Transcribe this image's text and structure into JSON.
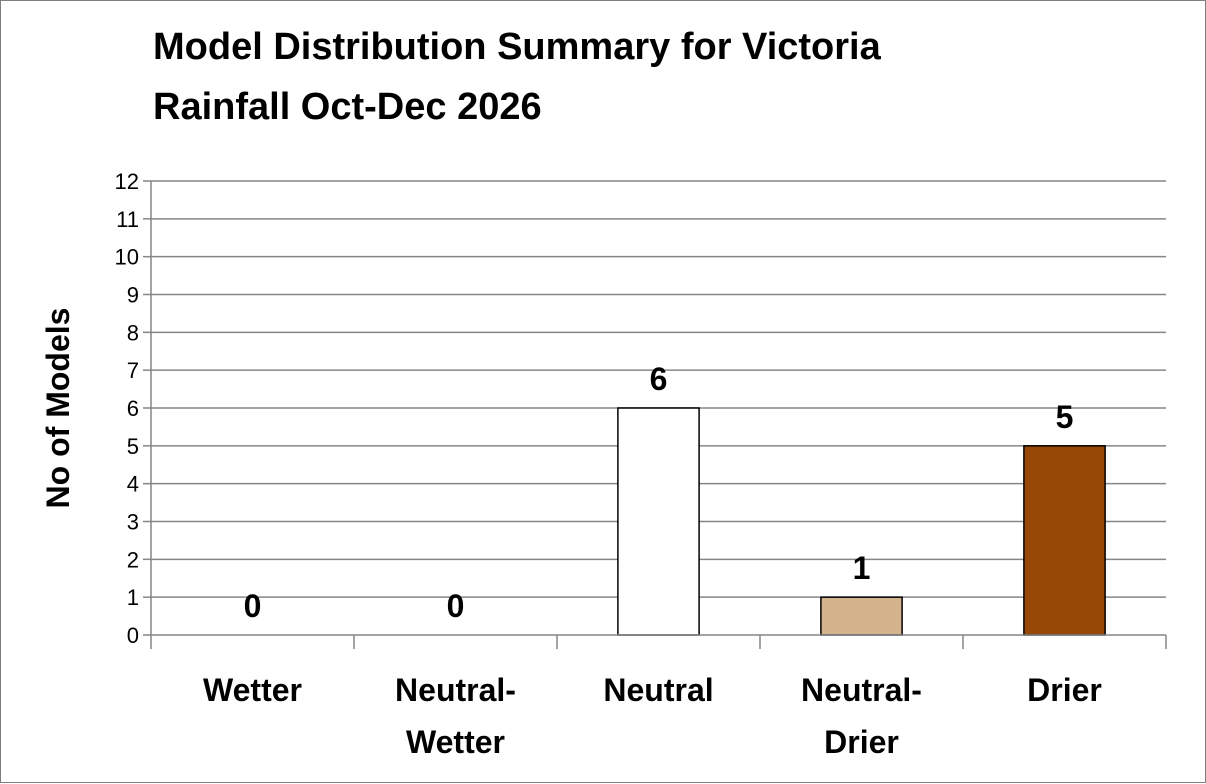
{
  "chart_data": {
    "type": "bar",
    "title_lines": [
      "Model Distribution Summary for Victoria",
      "Rainfall Oct-Dec 2026"
    ],
    "ylabel": "No of Models",
    "xlabel": "",
    "categories": [
      [
        "Wetter"
      ],
      [
        "Neutral-",
        "Wetter"
      ],
      [
        "Neutral"
      ],
      [
        "Neutral-",
        "Drier"
      ],
      [
        "Drier"
      ]
    ],
    "values": [
      0,
      0,
      6,
      1,
      5
    ],
    "data_labels": [
      "0",
      "0",
      "6",
      "1",
      "5"
    ],
    "bar_colors": [
      "#ffffff",
      "#ffffff",
      "#ffffff",
      "#d3b48c",
      "#984806"
    ],
    "ylim": [
      0,
      12
    ],
    "yticks": [
      "0",
      "1",
      "2",
      "3",
      "4",
      "5",
      "6",
      "7",
      "8",
      "9",
      "10",
      "11",
      "12"
    ],
    "grid": true,
    "legend": "none"
  }
}
